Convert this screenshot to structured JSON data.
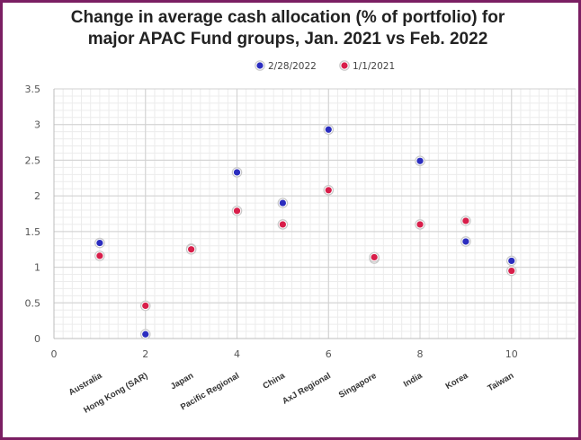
{
  "chart_data": {
    "type": "scatter",
    "title_line1": "Change in average cash allocation (% of portfolio) for",
    "title_line2": "major APAC Fund groups, Jan. 2021 vs Feb. 2022",
    "xlim": [
      0,
      11.4
    ],
    "ylim": [
      0,
      3.5
    ],
    "x_ticks": [
      "0",
      "2",
      "4",
      "6",
      "8",
      "10"
    ],
    "y_ticks": [
      "0",
      "0.5",
      "1",
      "1.5",
      "2",
      "2.5",
      "3",
      "3.5"
    ],
    "categories": [
      "Australia",
      "Hong Kong (SAR)",
      "Japan",
      "Pacific Regional",
      "China",
      "AxJ Regional",
      "Singapore",
      "India",
      "Korea",
      "Taiwan"
    ],
    "x": [
      1,
      2,
      3,
      4,
      5,
      6,
      7,
      8,
      9,
      10
    ],
    "series": [
      {
        "name": "2/28/2022",
        "color": "#2b2dbf",
        "values": [
          1.34,
          0.06,
          1.26,
          2.33,
          1.9,
          2.93,
          1.12,
          2.49,
          1.36,
          1.09
        ]
      },
      {
        "name": "1/1/2021",
        "color": "#d81e4a",
        "values": [
          1.16,
          0.46,
          1.25,
          1.79,
          1.6,
          2.08,
          1.14,
          1.6,
          1.65,
          0.95
        ]
      }
    ],
    "grid": true,
    "legend_position": "top-center"
  }
}
